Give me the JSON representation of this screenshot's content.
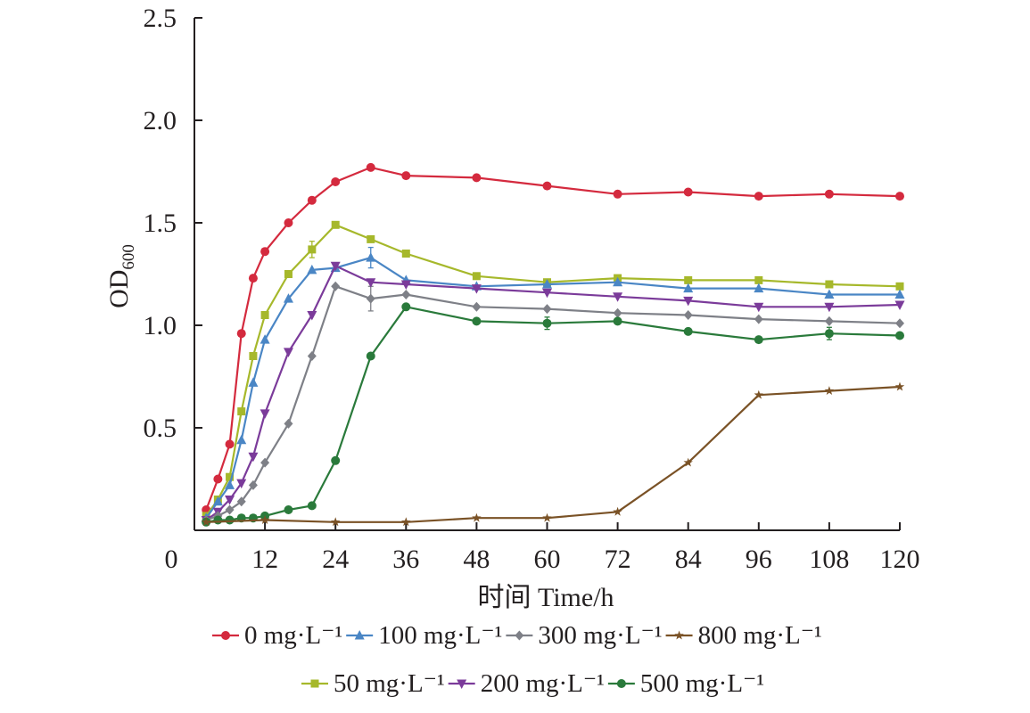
{
  "chart_data": {
    "type": "line",
    "title": "",
    "xlabel": "时间 Time/h",
    "ylabel": {
      "main": "OD",
      "sub": "600"
    },
    "xlim": [
      0,
      120
    ],
    "ylim": [
      0,
      2.5
    ],
    "x_ticks": [
      0,
      12,
      24,
      36,
      48,
      60,
      72,
      84,
      96,
      108,
      120
    ],
    "x_tick_labels": [
      "0",
      "12",
      "24",
      "36",
      "48",
      "60",
      "72",
      "84",
      "96",
      "108",
      "120"
    ],
    "y_ticks": [
      0.5,
      1.0,
      1.5,
      2.0,
      2.5
    ],
    "y_tick_labels": [
      "0.5",
      "1.0",
      "1.5",
      "2.0",
      "2.5"
    ],
    "grid": false,
    "legend_position": "bottom",
    "x": [
      2,
      4,
      6,
      8,
      10,
      12,
      16,
      20,
      24,
      30,
      36,
      48,
      60,
      72,
      84,
      96,
      108,
      120
    ],
    "series": [
      {
        "name": "0 mg·L⁻¹",
        "color": "#d42a3e",
        "marker": "circle",
        "values": [
          0.1,
          0.25,
          0.42,
          0.96,
          1.23,
          1.36,
          1.5,
          1.61,
          1.7,
          1.77,
          1.73,
          1.72,
          1.68,
          1.64,
          1.65,
          1.63,
          1.64,
          1.63
        ]
      },
      {
        "name": "50 mg·L⁻¹",
        "color": "#a6b82b",
        "marker": "square",
        "values": [
          0.07,
          0.15,
          0.26,
          0.58,
          0.85,
          1.05,
          1.25,
          1.37,
          1.49,
          1.42,
          1.35,
          1.24,
          1.21,
          1.23,
          1.22,
          1.22,
          1.2,
          1.19
        ]
      },
      {
        "name": "100 mg·L⁻¹",
        "color": "#4a86c5",
        "marker": "triangle-up",
        "values": [
          0.06,
          0.14,
          0.22,
          0.44,
          0.72,
          0.93,
          1.13,
          1.27,
          1.28,
          1.33,
          1.22,
          1.19,
          1.2,
          1.21,
          1.18,
          1.18,
          1.15,
          1.15
        ]
      },
      {
        "name": "200 mg·L⁻¹",
        "color": "#7b3b9a",
        "marker": "triangle-down",
        "values": [
          0.05,
          0.09,
          0.15,
          0.23,
          0.36,
          0.57,
          0.87,
          1.05,
          1.29,
          1.21,
          1.2,
          1.18,
          1.16,
          1.14,
          1.12,
          1.09,
          1.09,
          1.1
        ]
      },
      {
        "name": "300 mg·L⁻¹",
        "color": "#7e8087",
        "marker": "diamond",
        "values": [
          0.05,
          0.07,
          0.1,
          0.14,
          0.22,
          0.33,
          0.52,
          0.85,
          1.19,
          1.13,
          1.15,
          1.09,
          1.08,
          1.06,
          1.05,
          1.03,
          1.02,
          1.01
        ]
      },
      {
        "name": "500 mg·L⁻¹",
        "color": "#2a7a3b",
        "marker": "circle",
        "values": [
          0.04,
          0.05,
          0.05,
          0.06,
          0.06,
          0.07,
          0.1,
          0.12,
          0.34,
          0.85,
          1.09,
          1.02,
          1.01,
          1.02,
          0.97,
          0.93,
          0.96,
          0.95
        ]
      },
      {
        "name": "800 mg·L⁻¹",
        "color": "#7a5226",
        "marker": "star",
        "x": [
          2,
          12,
          24,
          36,
          48,
          60,
          72,
          84,
          96,
          108,
          120
        ],
        "values": [
          0.04,
          0.05,
          0.04,
          0.04,
          0.06,
          0.06,
          0.09,
          0.33,
          0.66,
          0.68,
          0.7
        ]
      }
    ],
    "error_bars": [
      {
        "series": "50 mg·L⁻¹",
        "x": 20,
        "err": 0.04
      },
      {
        "series": "100 mg·L⁻¹",
        "x": 30,
        "err": 0.05
      },
      {
        "series": "300 mg·L⁻¹",
        "x": 30,
        "err": 0.06
      },
      {
        "series": "500 mg·L⁻¹",
        "x": 60,
        "err": 0.03
      },
      {
        "series": "500 mg·L⁻¹",
        "x": 108,
        "err": 0.03
      }
    ],
    "legend_rows": [
      [
        "0 mg·L⁻¹",
        "100 mg·L⁻¹",
        "300 mg·L⁻¹",
        "800 mg·L⁻¹"
      ],
      [
        "50 mg·L⁻¹",
        "200 mg·L⁻¹",
        "500 mg·L⁻¹"
      ]
    ]
  }
}
